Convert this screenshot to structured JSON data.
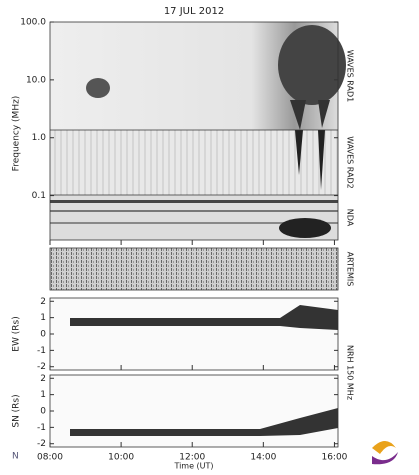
{
  "chart_data": [
    {
      "type": "spectrogram",
      "title": "17 JUL 2012",
      "ylabel": "Frequency (MHz)",
      "log_y": true,
      "ylim": [
        0.014,
        100
      ],
      "yticks": [
        0.1,
        {
          "value": 1,
          "label": "1.0"
        },
        {
          "value": 10,
          "label": "10.0"
        },
        {
          "value": 100,
          "label": "100.0"
        }
      ],
      "xlim": [
        8,
        16.1
      ],
      "panel_labels": [
        "WAVES RAD1",
        "WAVES RAD2",
        "NDA",
        "ARTEMIS"
      ]
    },
    {
      "type": "spectrogram",
      "ylabel": "EW (Rs)",
      "ylim": [
        -2.2,
        2.2
      ],
      "yticks": [
        2,
        1,
        0,
        -1,
        -2
      ],
      "xlim": [
        8,
        16.1
      ],
      "panel_labels": [
        "NRH 150 MHz"
      ]
    },
    {
      "type": "spectrogram",
      "ylabel": "SN (Rs)",
      "ylim": [
        -2.2,
        2.2
      ],
      "yticks": [
        2,
        1,
        0,
        -1,
        -2
      ],
      "xlim": [
        8,
        16.1
      ],
      "xlabel": "Time (UT)",
      "xticks": [
        {
          "value": 8,
          "label": "08:00"
        },
        {
          "value": 10,
          "label": "10:00"
        },
        {
          "value": 12,
          "label": "12:00"
        },
        {
          "value": 14,
          "label": "14:00"
        },
        {
          "value": 16,
          "label": "16:00"
        }
      ]
    }
  ]
}
